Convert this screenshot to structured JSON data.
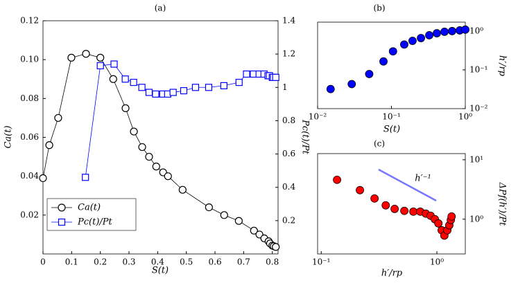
{
  "chart_data": [
    {
      "type": "line",
      "title": "(a)",
      "xlabel": "S(t)",
      "ylabel": "Ca(t)",
      "y2label": "Pc(t)/Pt",
      "xlim": [
        0,
        0.82
      ],
      "xticks": [
        0,
        0.1,
        0.2,
        0.3,
        0.4,
        0.5,
        0.6,
        0.7,
        0.8
      ],
      "ylim": [
        0,
        0.12
      ],
      "yticks": [
        0.02,
        0.04,
        0.06,
        0.08,
        {
          "value": 0.1,
          "label": "0.10"
        },
        0.12
      ],
      "y2lim": [
        0,
        1.4
      ],
      "y2ticks": [
        0.2,
        0.4,
        0.6,
        0.8,
        1,
        1.2,
        1.4
      ],
      "legend": "lower left",
      "series": [
        {
          "name": "Ca(t)",
          "color": "#000000",
          "marker": "circle",
          "x": [
            0,
            0.022,
            0.053,
            0.099,
            0.15,
            0.2,
            0.245,
            0.288,
            0.317,
            0.346,
            0.37,
            0.395,
            0.419,
            0.436,
            0.487,
            0.579,
            0.632,
            0.683,
            0.736,
            0.755,
            0.772,
            0.787,
            0.792,
            0.8,
            0.805,
            0.812
          ],
          "values": [
            0.039,
            0.056,
            0.07,
            0.101,
            0.103,
            0.101,
            0.09,
            0.075,
            0.063,
            0.055,
            0.05,
            0.045,
            0.042,
            0.04,
            0.033,
            0.024,
            0.02,
            0.017,
            0.012,
            0.01,
            0.008,
            0.0065,
            0.0054,
            0.0043,
            0.004,
            0.0036
          ]
        },
        {
          "name": "Pc(t)/Pt",
          "color": "#0000ff",
          "marker": "square",
          "axis": "y2",
          "x": [
            0.148,
            0.2,
            0.248,
            0.287,
            0.316,
            0.345,
            0.37,
            0.393,
            0.418,
            0.435,
            0.454,
            0.491,
            0.532,
            0.578,
            0.631,
            0.684,
            0.71,
            0.734,
            0.754,
            0.771,
            0.785,
            0.79,
            0.8,
            0.804,
            0.812
          ],
          "values": [
            0.46,
            1.13,
            1.14,
            1.05,
            1.03,
            1.0,
            0.97,
            0.96,
            0.96,
            0.96,
            0.97,
            0.98,
            1.0,
            1.0,
            1.01,
            1.03,
            1.08,
            1.08,
            1.08,
            1.08,
            1.07,
            1.07,
            1.06,
            1.06,
            1.06
          ]
        }
      ]
    },
    {
      "type": "scatter",
      "title": "(b)",
      "xlabel": "S(t)",
      "ylabel": "h′/rp",
      "xscale": "log",
      "yscale": "log",
      "y_axis_side": "right",
      "xlim": [
        0.01,
        1
      ],
      "xticks": [
        {
          "value": 0.01,
          "label": "10⁻²"
        },
        {
          "value": 0.1,
          "label": "10⁻¹"
        },
        {
          "value": 1,
          "label": "10⁰"
        }
      ],
      "ylim": [
        0.01,
        1.7
      ],
      "yticks": [
        {
          "value": 0.01,
          "label": "10⁻²"
        },
        {
          "value": 0.1,
          "label": "10⁻¹"
        },
        {
          "value": 1,
          "label": "10⁰"
        }
      ],
      "color": "#0000ff",
      "x": [
        0.015,
        0.029,
        0.05,
        0.078,
        0.105,
        0.149,
        0.193,
        0.251,
        0.325,
        0.412,
        0.523,
        0.663,
        0.841,
        1.0
      ],
      "values": [
        0.032,
        0.043,
        0.078,
        0.165,
        0.3,
        0.45,
        0.56,
        0.66,
        0.78,
        0.88,
        0.96,
        1.0,
        1.04,
        1.09
      ]
    },
    {
      "type": "scatter",
      "title": "(c)",
      "xlabel": "h′/rp",
      "ylabel": "ΔPf(h′)/Pt",
      "xscale": "log",
      "yscale": "log",
      "y_axis_side": "right",
      "annotation": "h′⁻¹",
      "xlim": [
        0.093,
        1.76
      ],
      "xticks": [
        {
          "value": 0.1,
          "label": "10⁻¹"
        },
        {
          "value": 1,
          "label": "10⁰"
        }
      ],
      "ylim": [
        0.26,
        12.7
      ],
      "yticks": [
        {
          "value": 1,
          "label": "10⁰"
        },
        {
          "value": 10,
          "label": "10¹"
        }
      ],
      "color": "#ff0000",
      "x": [
        0.137,
        0.216,
        0.289,
        0.361,
        0.431,
        0.523,
        0.626,
        0.718,
        0.802,
        0.883,
        0.96,
        1.03,
        1.1,
        1.16,
        1.23,
        1.28,
        1.32,
        1.34
      ],
      "values": [
        4.6,
        3.08,
        2.23,
        1.71,
        1.49,
        1.38,
        1.34,
        1.34,
        1.24,
        1.14,
        1.0,
        0.85,
        0.65,
        0.53,
        0.65,
        0.79,
        0.97,
        1.11
      ]
    }
  ]
}
